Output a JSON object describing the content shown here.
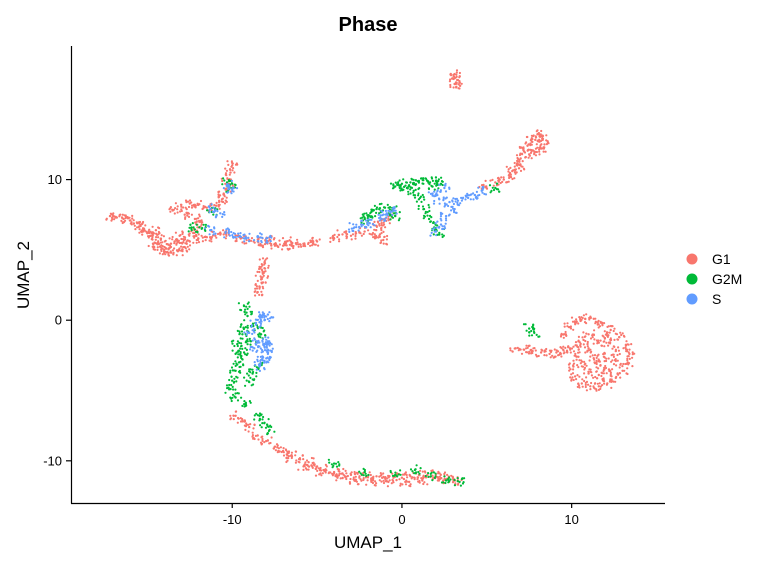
{
  "chart_data": {
    "type": "scatter",
    "title": "Phase",
    "xlabel": "UMAP_1",
    "ylabel": "UMAP_2",
    "xlim": [
      -19.5,
      15.5
    ],
    "ylim": [
      -13,
      19.5
    ],
    "xticks": [
      -10,
      0,
      10
    ],
    "yticks": [
      -10,
      0,
      10
    ],
    "grid": false,
    "legend_position": "right",
    "series": [
      {
        "name": "G1",
        "color": "#F8766D",
        "points": [
          [
            -17.2,
            7.4
          ],
          [
            -16.8,
            7.3
          ],
          [
            -16.4,
            7.2
          ],
          [
            -16,
            7.1
          ],
          [
            -15.6,
            6.9
          ],
          [
            -15.2,
            6.5
          ],
          [
            -14.8,
            6
          ],
          [
            -14.4,
            5.4
          ],
          [
            -14,
            5
          ],
          [
            -13.6,
            4.8
          ],
          [
            -13.2,
            4.9
          ],
          [
            -12.8,
            5.2
          ],
          [
            -14.5,
            6.4
          ],
          [
            -14.2,
            5.8
          ],
          [
            -13.8,
            5.4
          ],
          [
            -13.4,
            5.6
          ],
          [
            -15,
            6.2
          ],
          [
            -15.4,
            6.7
          ],
          [
            -13,
            5.5
          ],
          [
            -12.5,
            5.6
          ],
          [
            -12,
            5.8
          ],
          [
            -11.5,
            5.9
          ],
          [
            -11,
            6
          ],
          [
            -10.5,
            6.1
          ],
          [
            -14.6,
            5.2
          ],
          [
            -13.9,
            5.1
          ],
          [
            -12.3,
            6.2
          ],
          [
            -13.1,
            6
          ],
          [
            -13.5,
            7.8
          ],
          [
            -13,
            8.2
          ],
          [
            -12.5,
            8.3
          ],
          [
            -12,
            8.2
          ],
          [
            -11.5,
            8
          ],
          [
            -12.8,
            7.5
          ],
          [
            -12.2,
            7.2
          ],
          [
            -11.8,
            6.8
          ],
          [
            -10.8,
            8.2
          ],
          [
            -10.5,
            9
          ],
          [
            -10.3,
            9.8
          ],
          [
            -10.1,
            10.5
          ],
          [
            -10,
            11
          ],
          [
            -10.2,
            9.4
          ],
          [
            -10.6,
            8.6
          ],
          [
            -9.5,
            5.8
          ],
          [
            -9,
            5.7
          ],
          [
            -8.5,
            5.6
          ],
          [
            -8,
            5.5
          ],
          [
            -7.5,
            5.4
          ],
          [
            -7,
            5.3
          ],
          [
            -6.5,
            5.3
          ],
          [
            -6,
            5.4
          ],
          [
            -5.5,
            5.5
          ],
          [
            -5,
            5.6
          ],
          [
            -7.8,
            5.7
          ],
          [
            -6.8,
            5.6
          ],
          [
            -4,
            5.8
          ],
          [
            -3,
            6
          ],
          [
            -2.2,
            6.3
          ],
          [
            -1.5,
            6.7
          ],
          [
            -0.8,
            7.2
          ],
          [
            -1.2,
            6.9
          ],
          [
            -3.5,
            6.1
          ],
          [
            -1.3,
            6.1
          ],
          [
            -1.5,
            5.9
          ],
          [
            -1.1,
            5.7
          ],
          [
            3.1,
            17.5
          ],
          [
            3.1,
            17.2
          ],
          [
            3.1,
            16.8
          ],
          [
            3.2,
            16.6
          ],
          [
            4.8,
            9.6
          ],
          [
            5.5,
            9.8
          ],
          [
            6,
            10
          ],
          [
            6.3,
            10.3
          ],
          [
            6.5,
            10.6
          ],
          [
            6.8,
            11
          ],
          [
            7,
            11.5
          ],
          [
            7.2,
            12
          ],
          [
            7.4,
            12.4
          ],
          [
            7.6,
            12.8
          ],
          [
            7.9,
            13
          ],
          [
            8.1,
            13.2
          ],
          [
            8.3,
            12.9
          ],
          [
            8.4,
            12.5
          ],
          [
            8.2,
            12.2
          ],
          [
            7.8,
            12
          ],
          [
            6.9,
            10.8
          ],
          [
            7.5,
            11.8
          ],
          [
            -8.1,
            4.1
          ],
          [
            -8.1,
            3.7
          ],
          [
            -8.2,
            3.3
          ],
          [
            -8.3,
            2.9
          ],
          [
            -8.4,
            2.4
          ],
          [
            -8.5,
            2
          ],
          [
            -9.8,
            -6.8
          ],
          [
            -9.4,
            -7.2
          ],
          [
            -9,
            -7.6
          ],
          [
            -8.5,
            -8.2
          ],
          [
            -8,
            -8.6
          ],
          [
            -7.5,
            -9
          ],
          [
            -7,
            -9.3
          ],
          [
            -6.5,
            -9.6
          ],
          [
            -6,
            -9.9
          ],
          [
            -5.5,
            -10.1
          ],
          [
            -5,
            -10.4
          ],
          [
            -4.5,
            -10.6
          ],
          [
            -4,
            -10.8
          ],
          [
            -3.5,
            -10.9
          ],
          [
            -3,
            -11
          ],
          [
            -2.5,
            -11.1
          ],
          [
            -2,
            -11.1
          ],
          [
            -1.5,
            -11.1
          ],
          [
            -1,
            -11.2
          ],
          [
            -0.5,
            -11.2
          ],
          [
            0,
            -11.2
          ],
          [
            0.5,
            -11.1
          ],
          [
            1,
            -11
          ],
          [
            1.5,
            -11
          ],
          [
            2,
            -11
          ],
          [
            2.5,
            -11.1
          ],
          [
            3,
            -11.2
          ],
          [
            3.3,
            -11.4
          ],
          [
            -6.8,
            -9.8
          ],
          [
            -5.8,
            -10.4
          ],
          [
            -4.8,
            -10.9
          ],
          [
            -3.8,
            -11.2
          ],
          [
            -2.8,
            -11.4
          ],
          [
            -1.8,
            -11.5
          ],
          [
            -0.8,
            -11.5
          ],
          [
            0.2,
            -11.5
          ],
          [
            1.2,
            -11.4
          ],
          [
            2.2,
            -11.3
          ],
          [
            6.7,
            -2
          ],
          [
            7.2,
            -2.1
          ],
          [
            7.7,
            -2.2
          ],
          [
            8.2,
            -2.3
          ],
          [
            8.7,
            -2.4
          ],
          [
            9.1,
            -2.3
          ],
          [
            9.5,
            -2.1
          ],
          [
            9.9,
            -2
          ],
          [
            10.3,
            -1.8
          ],
          [
            9.6,
            -1
          ],
          [
            9.9,
            -0.5
          ],
          [
            10.3,
            -0.1
          ],
          [
            10.8,
            0.1
          ],
          [
            11.3,
            0.1
          ],
          [
            11.8,
            -0.2
          ],
          [
            12.3,
            -0.7
          ],
          [
            12.8,
            -1.2
          ],
          [
            13.2,
            -1.8
          ],
          [
            13.4,
            -2.4
          ],
          [
            13.3,
            -3
          ],
          [
            13,
            -3.6
          ],
          [
            12.6,
            -4.1
          ],
          [
            12.1,
            -4.5
          ],
          [
            11.6,
            -4.7
          ],
          [
            11.1,
            -4.7
          ],
          [
            10.6,
            -4.5
          ],
          [
            10.2,
            -4
          ],
          [
            10.1,
            -3.3
          ],
          [
            10.4,
            -2.6
          ],
          [
            11,
            -2
          ],
          [
            11.6,
            -1.6
          ],
          [
            12.2,
            -1.6
          ],
          [
            12.6,
            -2.2
          ],
          [
            12.6,
            -2.9
          ],
          [
            12.2,
            -3.5
          ],
          [
            11.6,
            -3.9
          ],
          [
            11,
            -3.8
          ],
          [
            10.8,
            -3.1
          ],
          [
            11.3,
            -2.7
          ],
          [
            11.9,
            -2.6
          ],
          [
            11.7,
            -3.2
          ],
          [
            11,
            -1
          ],
          [
            12.1,
            -1.1
          ],
          [
            10.7,
            -1.4
          ]
        ]
      },
      {
        "name": "G2M",
        "color": "#00BA38",
        "points": [
          [
            -10.3,
            9.8
          ],
          [
            -10.1,
            9.4
          ],
          [
            -11.8,
            6.5
          ],
          [
            -12.4,
            6.6
          ],
          [
            -11.2,
            7.7
          ],
          [
            -2.3,
            7.1
          ],
          [
            -2,
            7.4
          ],
          [
            -1.8,
            7.7
          ],
          [
            -1.5,
            7.9
          ],
          [
            -1,
            8
          ],
          [
            -0.6,
            7.8
          ],
          [
            -0.4,
            7.4
          ],
          [
            -0.4,
            9.5
          ],
          [
            0,
            9.7
          ],
          [
            0.5,
            9.8
          ],
          [
            1,
            9.9
          ],
          [
            1.5,
            9.9
          ],
          [
            2,
            9.9
          ],
          [
            2.3,
            9.7
          ],
          [
            0.7,
            9.2
          ],
          [
            1,
            8.6
          ],
          [
            1.3,
            7.9
          ],
          [
            1.6,
            7.2
          ],
          [
            1.9,
            6.6
          ],
          [
            2.2,
            6.2
          ],
          [
            0.3,
            9.4
          ],
          [
            1.8,
            9.5
          ],
          [
            5.5,
            9.4
          ],
          [
            -9.3,
            1
          ],
          [
            -9.1,
            0.3
          ],
          [
            -9.2,
            -0.5
          ],
          [
            -9.4,
            -1
          ],
          [
            -9.7,
            -1.7
          ],
          [
            -9.8,
            -2.4
          ],
          [
            -9.6,
            -3
          ],
          [
            -9.8,
            -3.6
          ],
          [
            -10,
            -4.3
          ],
          [
            -10.1,
            -4.9
          ],
          [
            -9.8,
            -5.5
          ],
          [
            -9.2,
            -6
          ],
          [
            -8.8,
            -3.8
          ],
          [
            -8.4,
            -3.2
          ],
          [
            -9,
            -4.4
          ],
          [
            -9.3,
            -2.3
          ],
          [
            -8.9,
            -1.5
          ],
          [
            -8.4,
            -6.8
          ],
          [
            -8.1,
            -7.3
          ],
          [
            -7.8,
            -7.8
          ],
          [
            -8.5,
            -0.5
          ],
          [
            -8.3,
            -1
          ],
          [
            -4,
            -10.2
          ],
          [
            -2.2,
            -10.8
          ],
          [
            -0.4,
            -11
          ],
          [
            0.8,
            -10.6
          ],
          [
            1.7,
            -11.1
          ],
          [
            2.6,
            -11.4
          ],
          [
            3.4,
            -11.5
          ],
          [
            7.5,
            -0.6
          ],
          [
            7.8,
            -0.9
          ]
        ]
      },
      {
        "name": "S",
        "color": "#619CFF",
        "points": [
          [
            -10,
            9.3
          ],
          [
            -10.2,
            9.6
          ],
          [
            -11.1,
            8
          ],
          [
            -10.7,
            7.6
          ],
          [
            -11.3,
            6.4
          ],
          [
            -10.2,
            6.2
          ],
          [
            -9.8,
            5.9
          ],
          [
            -9.2,
            5.9
          ],
          [
            -8.5,
            5.9
          ],
          [
            -8,
            5.8
          ],
          [
            -2.8,
            6.6
          ],
          [
            -2.4,
            6.8
          ],
          [
            -1.9,
            6.9
          ],
          [
            -1.2,
            7.2
          ],
          [
            -0.9,
            7.6
          ],
          [
            -0.5,
            7.8
          ],
          [
            1.8,
            9
          ],
          [
            2.2,
            8.6
          ],
          [
            2.8,
            8.4
          ],
          [
            3.3,
            8.5
          ],
          [
            3.9,
            8.7
          ],
          [
            4.3,
            8.9
          ],
          [
            2.6,
            7.4
          ],
          [
            2.3,
            6.8
          ],
          [
            2,
            6.3
          ],
          [
            3.1,
            7.9
          ],
          [
            4.7,
            9.2
          ],
          [
            2.5,
            9.4
          ],
          [
            -8.3,
            0.3
          ],
          [
            -7.9,
            0.4
          ],
          [
            -8.1,
            0
          ],
          [
            -8.5,
            -1.6
          ],
          [
            -8.1,
            -1.9
          ],
          [
            -7.9,
            -2.4
          ],
          [
            -8.1,
            -2.9
          ],
          [
            -8.4,
            -3.3
          ],
          [
            -8.7,
            -2
          ],
          [
            -9,
            -0.9
          ],
          [
            -8.6,
            -0.2
          ],
          [
            -7.9,
            -1.5
          ],
          [
            -8.2,
            -2.6
          ],
          [
            -7.8,
            -1.8
          ]
        ]
      }
    ]
  }
}
